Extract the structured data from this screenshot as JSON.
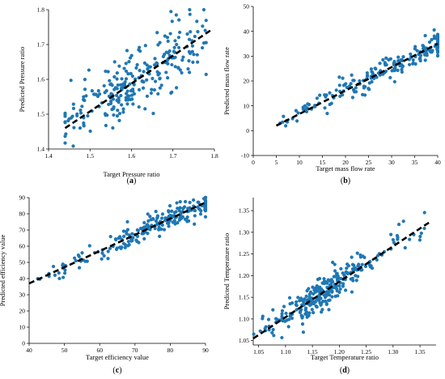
{
  "chart_data": [
    {
      "id": "a",
      "type": "scatter",
      "panel_label": "a",
      "xlabel": "Target Pressure ratio",
      "ylabel": "Predicted Pressure ratio",
      "xlim": [
        1.4,
        1.8
      ],
      "ylim": [
        1.4,
        1.8
      ],
      "xticks": [
        1.4,
        1.5,
        1.6,
        1.7,
        1.8
      ],
      "yticks": [
        1.4,
        1.5,
        1.6,
        1.7,
        1.8
      ],
      "tick_decimals": 1,
      "fit_line": {
        "x": [
          1.44,
          1.79
        ],
        "y": [
          1.46,
          1.74
        ]
      },
      "point_color": "#1f77b4",
      "fit_color": "#000000",
      "scatter": {
        "n": 260,
        "seed": 11,
        "x_min": 1.44,
        "x_max": 1.78,
        "x_center": 1.61,
        "x_spread": 0.08,
        "noise": 0.045
      }
    },
    {
      "id": "b",
      "type": "scatter",
      "panel_label": "b",
      "xlabel": "Target mass flow rate",
      "ylabel": "Predicted mass flow rate",
      "xlim": [
        0,
        40
      ],
      "ylim": [
        -10,
        50
      ],
      "xticks": [
        0,
        5,
        10,
        15,
        20,
        25,
        30,
        35,
        40
      ],
      "yticks": [
        -10,
        0,
        10,
        20,
        30,
        40,
        50
      ],
      "tick_decimals": 0,
      "fit_line": {
        "x": [
          5,
          40
        ],
        "y": [
          2,
          35
        ]
      },
      "point_color": "#1f77b4",
      "fit_color": "#000000",
      "scatter": {
        "n": 200,
        "seed": 23,
        "x_min": 5,
        "x_max": 40,
        "x_center": 30,
        "x_spread": 9,
        "noise": 2.3
      }
    },
    {
      "id": "c",
      "type": "scatter",
      "panel_label": "c",
      "xlabel": "Target efficiency value",
      "ylabel": "Predicted efficiency value",
      "xlim": [
        40,
        90
      ],
      "ylim": [
        0,
        90
      ],
      "xticks": [
        40,
        50,
        60,
        70,
        80,
        90
      ],
      "yticks": [
        0,
        10,
        20,
        30,
        40,
        50,
        60,
        70,
        80,
        90
      ],
      "tick_decimals": 0,
      "fit_line": {
        "x": [
          40,
          90
        ],
        "y": [
          37,
          87
        ]
      },
      "point_color": "#1f77b4",
      "fit_color": "#000000",
      "scatter": {
        "n": 240,
        "seed": 37,
        "x_min": 42,
        "x_max": 90,
        "x_center": 80,
        "x_spread": 11,
        "noise": 3.6
      }
    },
    {
      "id": "d",
      "type": "scatter",
      "panel_label": "d",
      "xlabel": "Target Temperature ratio",
      "ylabel": "Predicted Temperature ratio",
      "xlim": [
        1.04,
        1.38
      ],
      "ylim": [
        1.04,
        1.38
      ],
      "xticks": [
        1.05,
        1.1,
        1.15,
        1.2,
        1.25,
        1.3,
        1.35
      ],
      "yticks": [
        1.05,
        1.1,
        1.15,
        1.2,
        1.25,
        1.3,
        1.35
      ],
      "tick_decimals": 2,
      "fit_line": {
        "x": [
          1.04,
          1.37
        ],
        "y": [
          1.055,
          1.325
        ]
      },
      "point_color": "#1f77b4",
      "fit_color": "#000000",
      "scatter": {
        "n": 280,
        "seed": 53,
        "x_min": 1.04,
        "x_max": 1.37,
        "x_center": 1.17,
        "x_spread": 0.035,
        "noise": 0.018
      }
    }
  ]
}
